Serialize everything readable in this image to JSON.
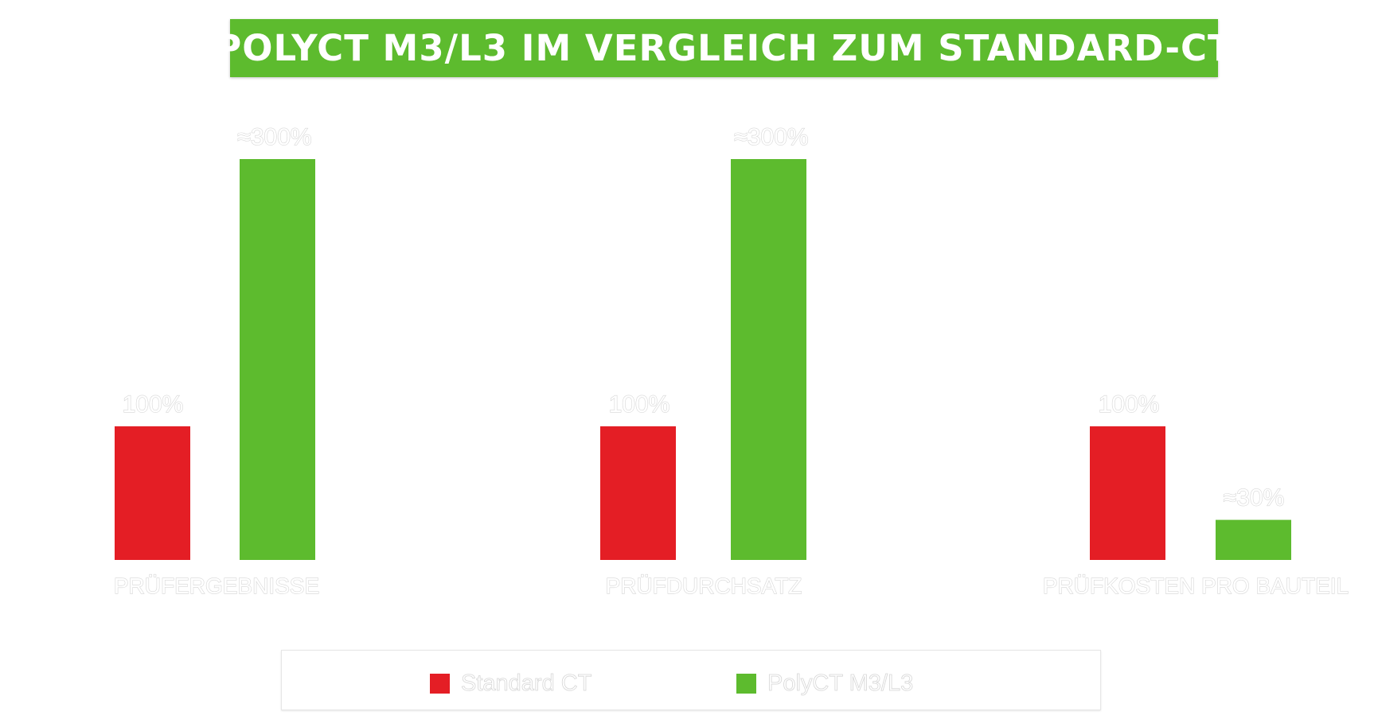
{
  "colors": {
    "standard": "#e41e25",
    "polyct": "#5dbb2e"
  },
  "chart_data": {
    "type": "bar",
    "title": "POLYCT M3/L3 IM VERGLEICH ZUM STANDARD-CT",
    "categories": [
      "PRÜFERGEBNISSE",
      "PRÜFDURCHSATZ",
      "PRÜFKOSTEN PRO BAUTEIL"
    ],
    "series": [
      {
        "name": "Standard CT",
        "values": [
          100,
          100,
          100
        ],
        "labels": [
          "100%",
          "100%",
          "100%"
        ]
      },
      {
        "name": "PolyCT M3/L3",
        "values": [
          300,
          300,
          30
        ],
        "labels": [
          "≈300%",
          "≈300%",
          "≈30%"
        ]
      }
    ],
    "ylim": [
      0,
      300
    ],
    "grid": false,
    "legend": "bottom"
  }
}
